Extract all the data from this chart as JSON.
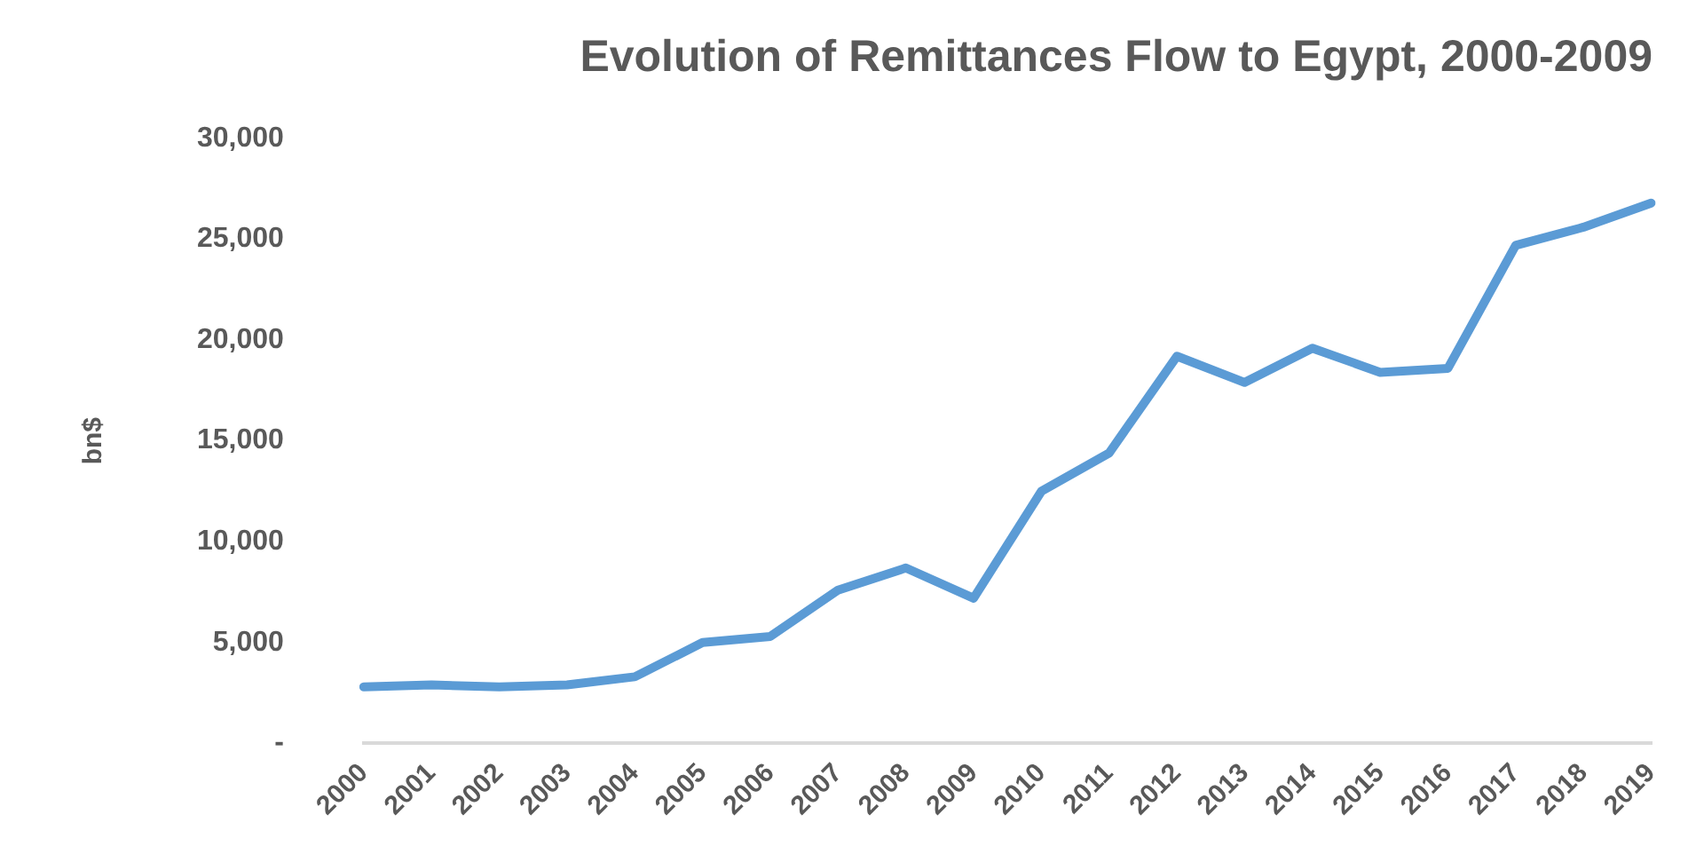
{
  "chart_data": {
    "type": "line",
    "title": "Evolution of Remittances Flow to Egypt, 2000-2009",
    "ylabel": "bn$",
    "categories": [
      "2000",
      "2001",
      "2002",
      "2003",
      "2004",
      "2005",
      "2006",
      "2007",
      "2008",
      "2009",
      "2010",
      "2011",
      "2012",
      "2013",
      "2014",
      "2015",
      "2016",
      "2017",
      "2018",
      "2019"
    ],
    "series": [
      {
        "color": "#5b9bd5",
        "values": [
          2800,
          2900,
          2800,
          2900,
          3300,
          5000,
          5300,
          7600,
          8700,
          7200,
          12500,
          14400,
          19200,
          17900,
          19600,
          18400,
          18600,
          24700,
          25600,
          26800
        ]
      }
    ],
    "ylim": [
      0,
      30000
    ],
    "yticks": [
      {
        "value": 0,
        "label": "-"
      },
      {
        "value": 5000,
        "label": "5,000"
      },
      {
        "value": 10000,
        "label": "10,000"
      },
      {
        "value": 15000,
        "label": "15,000"
      },
      {
        "value": 20000,
        "label": "20,000"
      },
      {
        "value": 25000,
        "label": "25,000"
      },
      {
        "value": 30000,
        "label": "30,000"
      }
    ],
    "grid": false,
    "legend": false,
    "marker": "none",
    "line_style": "solid"
  }
}
